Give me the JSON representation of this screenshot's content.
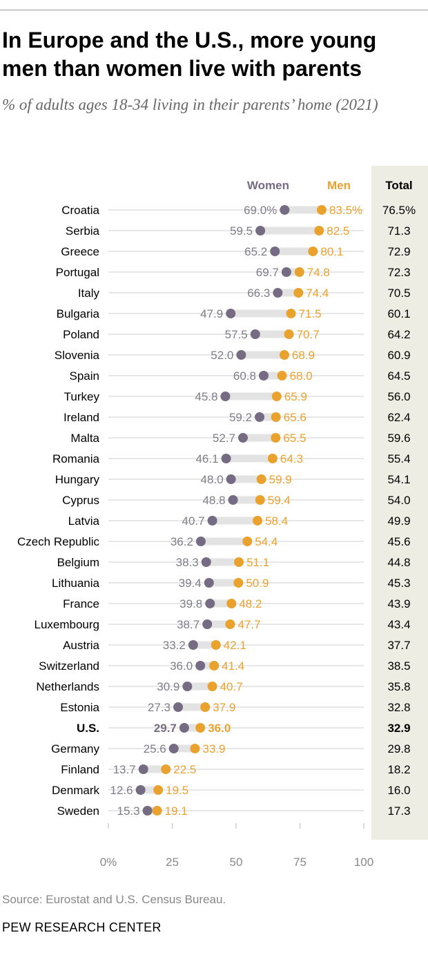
{
  "header": {
    "title": "In Europe and the U.S., more young men than women live with parents",
    "subtitle": "% of adults ages 18-34 living in their parents’ home (2021)"
  },
  "footer": {
    "source": "Source: Eurostat and U.S. Census Bureau.",
    "org": "PEW RESEARCH CENTER"
  },
  "colors": {
    "women": "#756B82",
    "men": "#EAA22F",
    "total_bg": "#EDEDE4",
    "track": "#E3E3E3",
    "rule": "#CFCFCF"
  },
  "chart_data": {
    "type": "dot",
    "legend": {
      "women": "Women",
      "men": "Men",
      "total": "Total"
    },
    "xlim": [
      0,
      100
    ],
    "xticks": [
      0,
      25,
      50,
      75,
      100
    ],
    "xtick_labels": [
      "0%",
      "25",
      "50",
      "75",
      "100"
    ],
    "categories": [
      "Croatia",
      "Serbia",
      "Greece",
      "Portugal",
      "Italy",
      "Bulgaria",
      "Poland",
      "Slovenia",
      "Spain",
      "Turkey",
      "Ireland",
      "Malta",
      "Romania",
      "Hungary",
      "Cyprus",
      "Latvia",
      "Czech Republic",
      "Belgium",
      "Lithuania",
      "France",
      "Luxembourg",
      "Austria",
      "Switzerland",
      "Netherlands",
      "Estonia",
      "U.S.",
      "Germany",
      "Finland",
      "Denmark",
      "Sweden"
    ],
    "series": [
      {
        "name": "Women",
        "values": [
          69.0,
          59.5,
          65.2,
          69.7,
          66.3,
          47.9,
          57.5,
          52.0,
          60.8,
          45.8,
          59.2,
          52.7,
          46.1,
          48.0,
          48.8,
          40.7,
          36.2,
          38.3,
          39.4,
          39.8,
          38.7,
          33.2,
          36.0,
          30.9,
          27.3,
          29.7,
          25.6,
          13.7,
          12.6,
          15.3
        ]
      },
      {
        "name": "Men",
        "values": [
          83.5,
          82.5,
          80.1,
          74.8,
          74.4,
          71.5,
          70.7,
          68.9,
          68.0,
          65.9,
          65.6,
          65.5,
          64.3,
          59.9,
          59.4,
          58.4,
          54.4,
          51.1,
          50.9,
          48.2,
          47.7,
          42.1,
          41.4,
          40.7,
          37.9,
          36.0,
          33.9,
          22.5,
          19.5,
          19.1
        ]
      },
      {
        "name": "Total",
        "values": [
          76.5,
          71.3,
          72.9,
          72.3,
          70.5,
          60.1,
          64.2,
          60.9,
          64.5,
          56.0,
          62.4,
          59.6,
          55.4,
          54.1,
          54.0,
          49.9,
          45.6,
          44.8,
          45.3,
          43.9,
          43.4,
          37.7,
          38.5,
          35.8,
          32.8,
          32.9,
          29.8,
          18.2,
          16.0,
          17.3
        ]
      }
    ],
    "women_labels": [
      "69.0%",
      "59.5",
      "65.2",
      "69.7",
      "66.3",
      "47.9",
      "57.5",
      "52.0",
      "60.8",
      "45.8",
      "59.2",
      "52.7",
      "46.1",
      "48.0",
      "48.8",
      "40.7",
      "36.2",
      "38.3",
      "39.4",
      "39.8",
      "38.7",
      "33.2",
      "36.0",
      "30.9",
      "27.3",
      "29.7",
      "25.6",
      "13.7",
      "12.6",
      "15.3"
    ],
    "men_labels": [
      "83.5%",
      "82.5",
      "80.1",
      "74.8",
      "74.4",
      "71.5",
      "70.7",
      "68.9",
      "68.0",
      "65.9",
      "65.6",
      "65.5",
      "64.3",
      "59.9",
      "59.4",
      "58.4",
      "54.4",
      "51.1",
      "50.9",
      "48.2",
      "47.7",
      "42.1",
      "41.4",
      "40.7",
      "37.9",
      "36.0",
      "33.9",
      "22.5",
      "19.5",
      "19.1"
    ],
    "total_labels": [
      "76.5%",
      "71.3",
      "72.9",
      "72.3",
      "70.5",
      "60.1",
      "64.2",
      "60.9",
      "64.5",
      "56.0",
      "62.4",
      "59.6",
      "55.4",
      "54.1",
      "54.0",
      "49.9",
      "45.6",
      "44.8",
      "45.3",
      "43.9",
      "43.4",
      "37.7",
      "38.5",
      "35.8",
      "32.8",
      "32.9",
      "29.8",
      "18.2",
      "16.0",
      "17.3"
    ],
    "highlight_category": "U.S."
  }
}
